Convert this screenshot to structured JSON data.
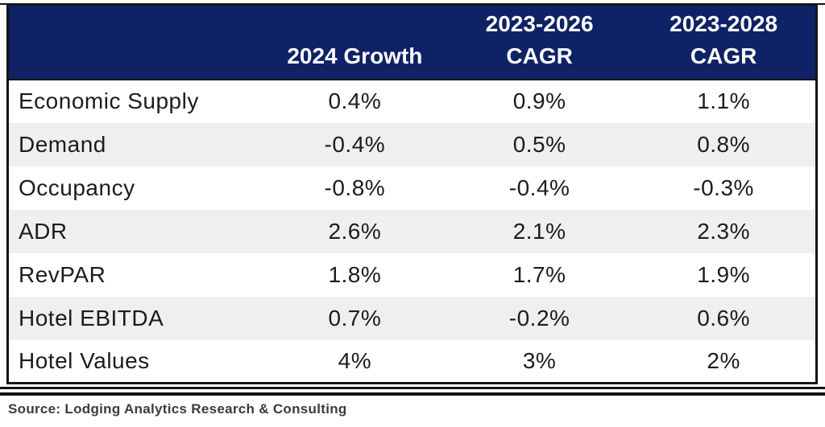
{
  "colors": {
    "header_bg": "#0F2265",
    "header_text": "#FFFFFF",
    "alt_row_bg": "#EFEFEF",
    "body_text": "#1C1C1C",
    "border": "#141414"
  },
  "header": {
    "metric_col_label": "",
    "cols": [
      {
        "top": "",
        "bottom": "2024 Growth"
      },
      {
        "top": "2023-2026",
        "bottom": "CAGR"
      },
      {
        "top": "2023-2028",
        "bottom": "CAGR"
      }
    ]
  },
  "chart_data": {
    "type": "table",
    "columns": [
      "",
      "2024 Growth",
      "2023-2026 CAGR",
      "2023-2028 CAGR"
    ],
    "rows": [
      [
        "Economic Supply",
        "0.4%",
        "0.9%",
        "1.1%"
      ],
      [
        "Demand",
        "-0.4%",
        "0.5%",
        "0.8%"
      ],
      [
        "Occupancy",
        "-0.8%",
        "-0.4%",
        "-0.3%"
      ],
      [
        "ADR",
        "2.6%",
        "2.1%",
        "2.3%"
      ],
      [
        "RevPAR",
        "1.8%",
        "1.7%",
        "1.9%"
      ],
      [
        "Hotel EBITDA",
        "0.7%",
        "-0.2%",
        "0.6%"
      ],
      [
        "Hotel Values",
        "4%",
        "3%",
        "2%"
      ]
    ],
    "source": "Source: Lodging Analytics Research & Consulting"
  }
}
